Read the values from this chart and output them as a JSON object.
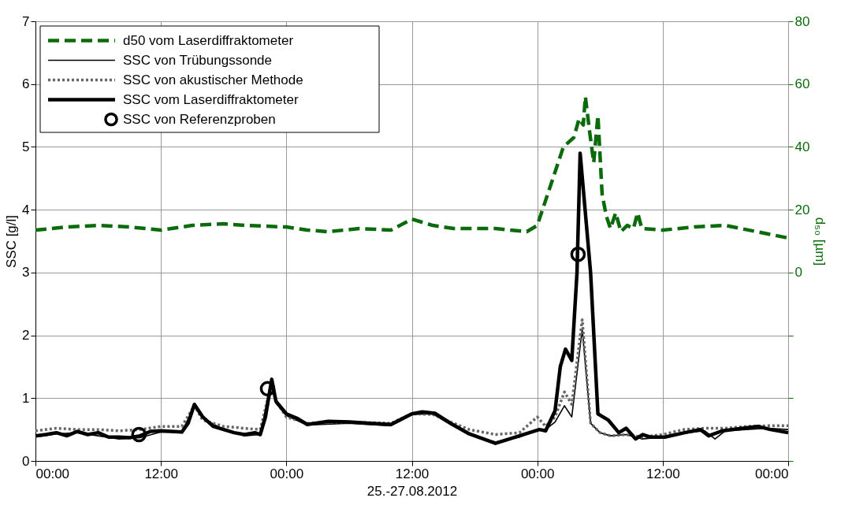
{
  "chart_data": {
    "type": "line",
    "xlabel": "25.-27.08.2012",
    "ylabel": "SSC [g/l]",
    "y2label": "d₅₀ [µm]",
    "xlim": [
      "2012-08-25T00:00",
      "2012-08-28T00:00"
    ],
    "xticks": [
      {
        "value": "2012-08-25T00:00",
        "label": "00:00"
      },
      {
        "value": "2012-08-25T12:00",
        "label": "12:00"
      },
      {
        "value": "2012-08-26T00:00",
        "label": "00:00"
      },
      {
        "value": "2012-08-26T12:00",
        "label": "12:00"
      },
      {
        "value": "2012-08-27T00:00",
        "label": "00:00"
      },
      {
        "value": "2012-08-27T12:00",
        "label": "12:00"
      },
      {
        "value": "2012-08-28T00:00",
        "label": "00:00"
      }
    ],
    "ylim": [
      0,
      7
    ],
    "yticks": [
      0,
      1,
      2,
      3,
      4,
      5,
      6,
      7
    ],
    "y2lim": [
      -60,
      80
    ],
    "y2ticks": [
      {
        "value": -60,
        "label": null
      },
      {
        "value": -40,
        "label": null
      },
      {
        "value": -20,
        "label": null
      },
      0,
      20,
      40,
      60,
      80
    ],
    "grid": true,
    "legend": "top left",
    "marker": "none",
    "series": [
      {
        "name": "d50  vom Laserdiffraktometer",
        "color": "#0b6b0b",
        "axis": "y2",
        "line_style": "dashed",
        "x": [
          "2012-08-25T00:00",
          "2012-08-25T03:00",
          "2012-08-25T06:00",
          "2012-08-25T09:00",
          "2012-08-25T12:00",
          "2012-08-25T15:00",
          "2012-08-25T18:00",
          "2012-08-25T20:00",
          "2012-08-26T00:00",
          "2012-08-26T02:00",
          "2012-08-26T04:00",
          "2012-08-26T07:00",
          "2012-08-26T10:00",
          "2012-08-26T12:00",
          "2012-08-26T14:00",
          "2012-08-26T16:00",
          "2012-08-26T20:00",
          "2012-08-26T23:00",
          "2012-08-27T00:00",
          "2012-08-27T01:30",
          "2012-08-27T02:30",
          "2012-08-27T03:30",
          "2012-08-27T04:00",
          "2012-08-27T04:24",
          "2012-08-27T04:36",
          "2012-08-27T05:00",
          "2012-08-27T05:24",
          "2012-08-27T05:48",
          "2012-08-27T06:12",
          "2012-08-27T06:36",
          "2012-08-27T07:00",
          "2012-08-27T07:30",
          "2012-08-27T08:00",
          "2012-08-27T08:36",
          "2012-08-27T09:12",
          "2012-08-27T09:36",
          "2012-08-27T10:00",
          "2012-08-27T12:00",
          "2012-08-27T15:00",
          "2012-08-27T18:00",
          "2012-08-27T21:00",
          "2012-08-28T00:00"
        ],
        "values": [
          13.5,
          14.5,
          15,
          14.5,
          13.5,
          15,
          15.5,
          15,
          14.5,
          13.5,
          13,
          14,
          13.5,
          17,
          15,
          14,
          14,
          13,
          15,
          30,
          40,
          43,
          49,
          47,
          56,
          45,
          35,
          50,
          25,
          18,
          14,
          19,
          13,
          15,
          14,
          19,
          14,
          13.5,
          14.5,
          15,
          13,
          11
        ]
      },
      {
        "name": "SSC von Trübungssonde",
        "color": "#000000",
        "x": [
          "2012-08-25T00:00",
          "2012-08-25T02:00",
          "2012-08-25T04:00",
          "2012-08-25T06:00",
          "2012-08-25T08:00",
          "2012-08-25T10:00",
          "2012-08-25T12:00",
          "2012-08-25T14:00",
          "2012-08-25T15:12",
          "2012-08-25T16:00",
          "2012-08-25T18:00",
          "2012-08-25T20:00",
          "2012-08-25T21:30",
          "2012-08-25T22:36",
          "2012-08-25T23:00",
          "2012-08-26T00:00",
          "2012-08-26T02:00",
          "2012-08-26T06:00",
          "2012-08-26T10:00",
          "2012-08-26T12:00",
          "2012-08-26T14:00",
          "2012-08-26T15:42",
          "2012-08-26T17:30",
          "2012-08-26T20:00",
          "2012-08-26T22:18",
          "2012-08-27T00:00",
          "2012-08-27T00:48",
          "2012-08-27T01:42",
          "2012-08-27T02:36",
          "2012-08-27T03:18",
          "2012-08-27T04:18",
          "2012-08-27T05:06",
          "2012-08-27T06:00",
          "2012-08-27T07:00",
          "2012-08-27T08:30",
          "2012-08-27T10:00",
          "2012-08-27T12:00",
          "2012-08-27T14:00",
          "2012-08-27T16:00",
          "2012-08-27T17:00",
          "2012-08-27T18:00",
          "2012-08-27T20:00",
          "2012-08-27T22:00",
          "2012-08-28T00:00"
        ],
        "values": [
          0.38,
          0.43,
          0.45,
          0.4,
          0.35,
          0.37,
          0.46,
          0.46,
          0.88,
          0.68,
          0.5,
          0.4,
          0.42,
          1.3,
          0.92,
          0.72,
          0.57,
          0.6,
          0.56,
          0.74,
          0.75,
          0.58,
          0.42,
          0.3,
          0.38,
          0.5,
          0.5,
          0.62,
          0.88,
          0.7,
          2.1,
          0.6,
          0.45,
          0.4,
          0.42,
          0.35,
          0.38,
          0.44,
          0.48,
          0.35,
          0.48,
          0.5,
          0.52,
          0.5
        ]
      },
      {
        "name": "SSC von akustischer Methode",
        "color": "#666666",
        "line_style": "dotted",
        "x": [
          "2012-08-25T00:00",
          "2012-08-25T02:00",
          "2012-08-25T04:00",
          "2012-08-25T06:00",
          "2012-08-25T08:00",
          "2012-08-25T10:00",
          "2012-08-25T12:00",
          "2012-08-25T14:00",
          "2012-08-25T15:12",
          "2012-08-25T16:00",
          "2012-08-25T18:00",
          "2012-08-25T20:00",
          "2012-08-25T21:30",
          "2012-08-25T22:36",
          "2012-08-25T23:00",
          "2012-08-26T00:00",
          "2012-08-26T02:00",
          "2012-08-26T06:00",
          "2012-08-26T10:00",
          "2012-08-26T12:00",
          "2012-08-26T14:00",
          "2012-08-26T15:42",
          "2012-08-26T17:30",
          "2012-08-26T20:00",
          "2012-08-26T22:18",
          "2012-08-27T00:00",
          "2012-08-27T00:48",
          "2012-08-27T01:42",
          "2012-08-27T02:36",
          "2012-08-27T03:18",
          "2012-08-27T04:18",
          "2012-08-27T05:06",
          "2012-08-27T06:00",
          "2012-08-27T07:00",
          "2012-08-27T08:30",
          "2012-08-27T10:00",
          "2012-08-27T12:00",
          "2012-08-27T14:00",
          "2012-08-27T16:00",
          "2012-08-27T18:00",
          "2012-08-27T20:00",
          "2012-08-27T22:00",
          "2012-08-28T00:00"
        ],
        "values": [
          0.48,
          0.52,
          0.5,
          0.5,
          0.48,
          0.5,
          0.55,
          0.55,
          0.88,
          0.65,
          0.55,
          0.52,
          0.5,
          1.25,
          0.95,
          0.7,
          0.6,
          0.62,
          0.6,
          0.75,
          0.74,
          0.62,
          0.5,
          0.42,
          0.45,
          0.7,
          0.55,
          0.7,
          1.1,
          0.9,
          2.25,
          0.6,
          0.45,
          0.4,
          0.42,
          0.38,
          0.42,
          0.5,
          0.52,
          0.52,
          0.55,
          0.56,
          0.56
        ]
      },
      {
        "name": "SSC vom Laserdiffraktometer",
        "color": "#000000",
        "x": [
          "2012-08-25T00:00",
          "2012-08-25T01:00",
          "2012-08-25T02:00",
          "2012-08-25T03:00",
          "2012-08-25T04:00",
          "2012-08-25T05:00",
          "2012-08-25T06:00",
          "2012-08-25T07:00",
          "2012-08-25T08:00",
          "2012-08-25T09:00",
          "2012-08-25T10:00",
          "2012-08-25T11:00",
          "2012-08-25T12:00",
          "2012-08-25T14:00",
          "2012-08-25T14:36",
          "2012-08-25T15:12",
          "2012-08-25T16:00",
          "2012-08-25T17:00",
          "2012-08-25T18:00",
          "2012-08-25T19:00",
          "2012-08-25T20:00",
          "2012-08-25T21:00",
          "2012-08-25T21:30",
          "2012-08-25T22:00",
          "2012-08-25T22:36",
          "2012-08-25T23:00",
          "2012-08-26T00:00",
          "2012-08-26T01:00",
          "2012-08-26T02:00",
          "2012-08-26T04:00",
          "2012-08-26T06:00",
          "2012-08-26T08:00",
          "2012-08-26T10:00",
          "2012-08-26T12:00",
          "2012-08-26T13:00",
          "2012-08-26T14:12",
          "2012-08-26T15:42",
          "2012-08-26T17:30",
          "2012-08-26T20:00",
          "2012-08-26T22:18",
          "2012-08-27T00:12",
          "2012-08-27T00:48",
          "2012-08-27T01:42",
          "2012-08-27T02:12",
          "2012-08-27T02:42",
          "2012-08-27T03:18",
          "2012-08-27T03:48",
          "2012-08-27T04:06",
          "2012-08-27T05:06",
          "2012-08-27T05:48",
          "2012-08-27T06:48",
          "2012-08-27T07:48",
          "2012-08-27T08:30",
          "2012-08-27T09:24",
          "2012-08-27T10:06",
          "2012-08-27T10:48",
          "2012-08-27T12:12",
          "2012-08-27T14:06",
          "2012-08-27T15:36",
          "2012-08-27T16:24",
          "2012-08-27T17:42",
          "2012-08-27T21:06",
          "2012-08-27T22:18",
          "2012-08-28T00:00"
        ],
        "values": [
          0.4,
          0.42,
          0.45,
          0.4,
          0.47,
          0.42,
          0.45,
          0.38,
          0.38,
          0.37,
          0.4,
          0.47,
          0.48,
          0.46,
          0.6,
          0.9,
          0.7,
          0.55,
          0.5,
          0.45,
          0.42,
          0.45,
          0.42,
          0.7,
          1.3,
          0.95,
          0.75,
          0.68,
          0.58,
          0.63,
          0.62,
          0.6,
          0.58,
          0.75,
          0.78,
          0.76,
          0.6,
          0.43,
          0.28,
          0.4,
          0.5,
          0.48,
          0.8,
          1.5,
          1.78,
          1.6,
          3.0,
          4.9,
          3.0,
          0.75,
          0.65,
          0.45,
          0.52,
          0.35,
          0.42,
          0.38,
          0.38,
          0.45,
          0.5,
          0.4,
          0.48,
          0.55,
          0.5,
          0.45
        ]
      },
      {
        "name": "SSC von Referenzproben",
        "color": "#000000",
        "type": "scatter",
        "marker": "circle",
        "x": [
          "2012-08-25T09:54",
          "2012-08-25T22:12",
          "2012-08-27T03:54"
        ],
        "values": [
          0.42,
          1.15,
          3.29
        ]
      }
    ]
  }
}
